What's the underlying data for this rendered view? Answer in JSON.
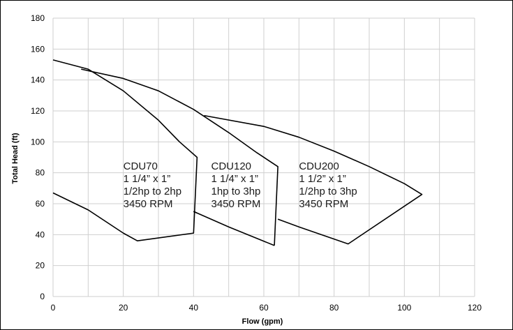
{
  "chart_data": {
    "type": "line",
    "title": "",
    "xlabel": "Flow (gpm)",
    "ylabel": "Total Head (ft)",
    "xlim": [
      0,
      120
    ],
    "ylim": [
      0,
      180
    ],
    "xticks": [
      0,
      20,
      40,
      60,
      80,
      100,
      120
    ],
    "yticks": [
      0,
      20,
      40,
      60,
      80,
      100,
      120,
      140,
      160,
      180
    ],
    "grid": true,
    "legend": "none",
    "series": [
      {
        "name": "CDU70",
        "x": [
          0,
          10,
          20,
          30,
          36,
          41,
          40,
          24,
          20,
          10,
          0
        ],
        "y": [
          153,
          147,
          133,
          114,
          100,
          90,
          41,
          36,
          41,
          56,
          67
        ],
        "label_lines": [
          "CDU70",
          "1 1/4” x 1”",
          "1/2hp to 2hp",
          "3450 RPM"
        ]
      },
      {
        "name": "CDU120",
        "x": [
          8,
          20,
          30,
          40,
          50,
          58,
          64,
          63,
          40,
          50,
          63
        ],
        "y": [
          147,
          141,
          133,
          121,
          106,
          93,
          84,
          33,
          55,
          45,
          33
        ],
        "label_lines": [
          "CDU120",
          "1 1/4” x 1”",
          "1hp to 3hp",
          "3450 RPM"
        ]
      },
      {
        "name": "CDU200",
        "x": [
          43,
          60,
          70,
          80,
          90,
          100,
          105,
          84,
          64,
          70
        ],
        "y": [
          117,
          110,
          103,
          94,
          84,
          73,
          66,
          34,
          50,
          45
        ],
        "label_lines": [
          "CDU200",
          "1 1/2” x 1”",
          "1/2hp to 3hp",
          "3450 RPM"
        ]
      }
    ]
  }
}
